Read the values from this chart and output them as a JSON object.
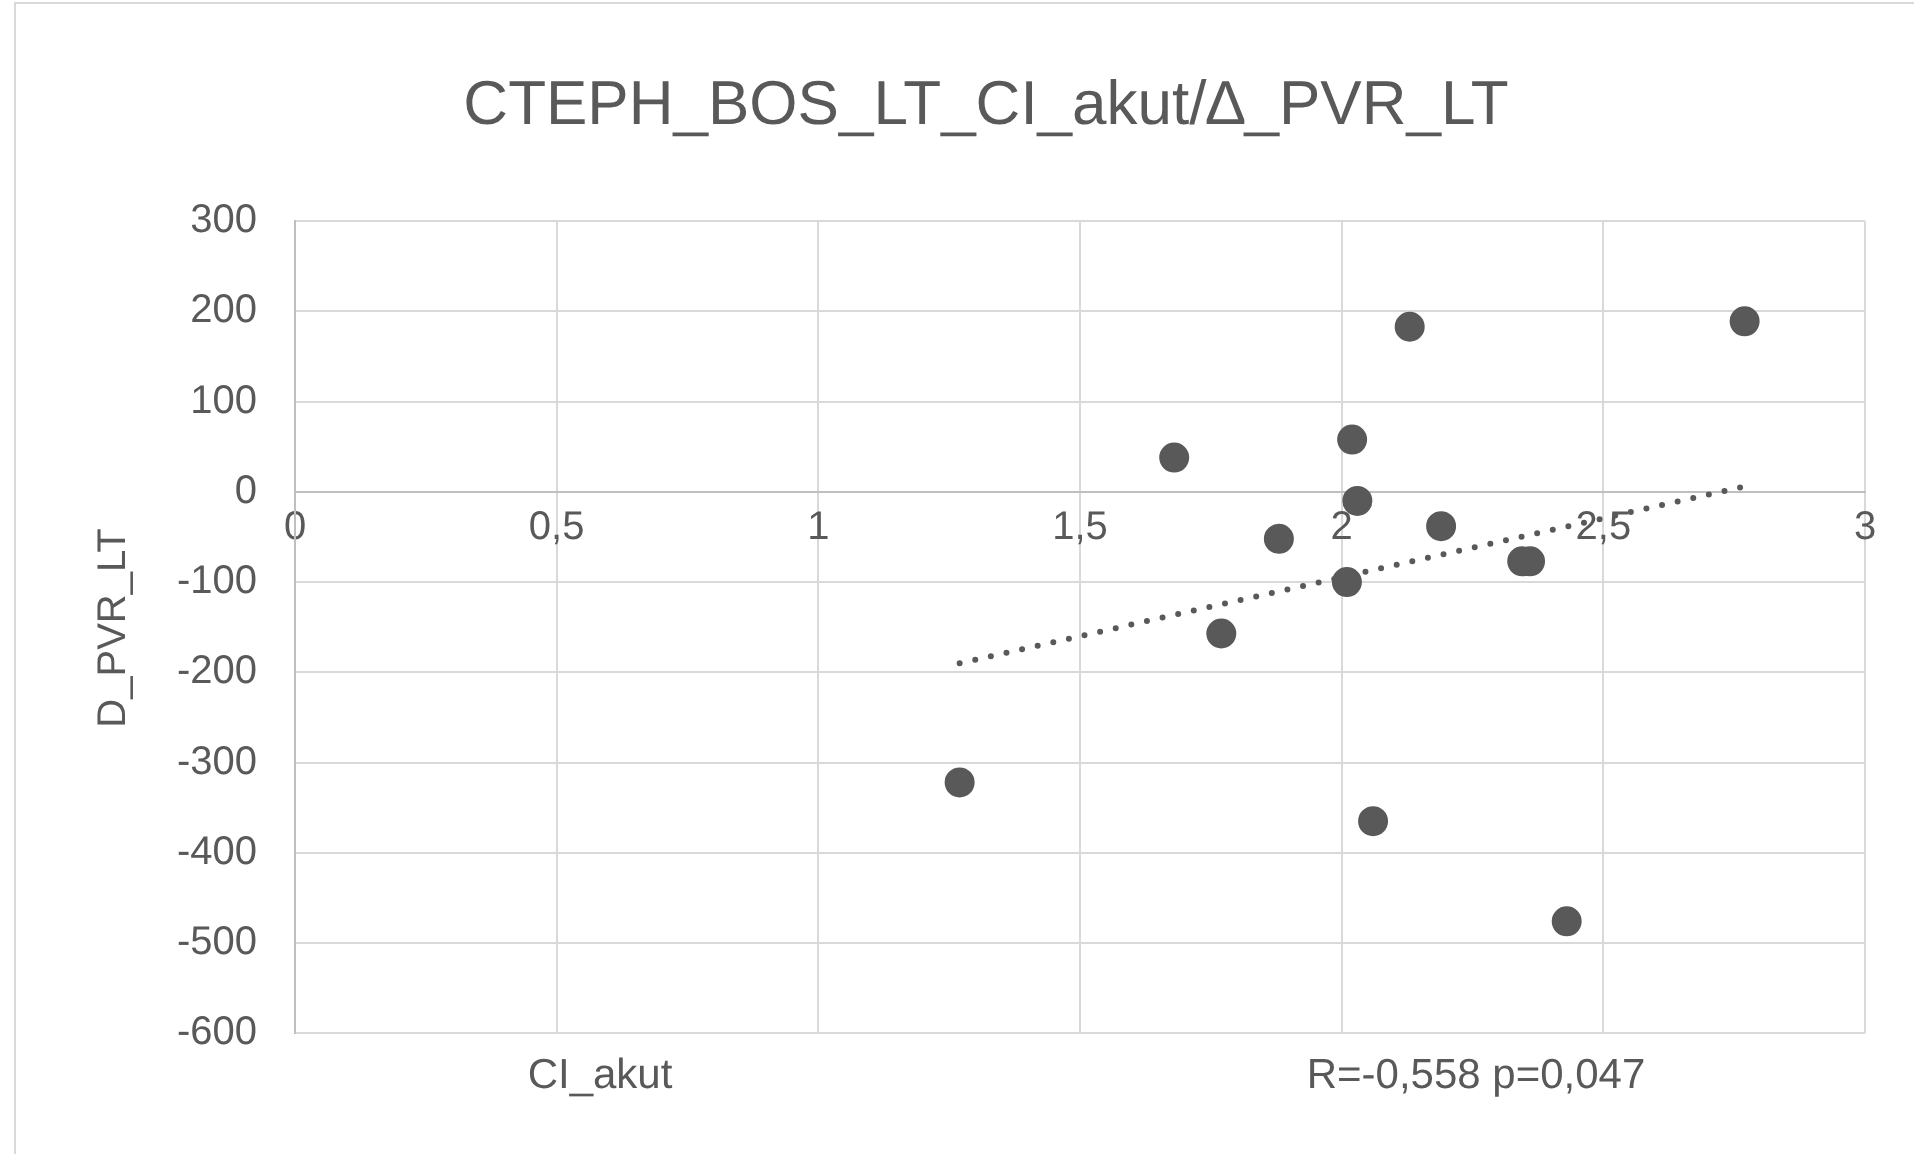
{
  "chart_data": {
    "type": "scatter",
    "title": "CTEPH_BOS_LT_CI_akut/∆_PVR_LT",
    "xlabel": "CI_akut",
    "ylabel": "D_PVR_LT",
    "annotations": [
      "R=-0,558 p=0,047"
    ],
    "xlim": [
      0,
      3
    ],
    "xticks": [
      0,
      {
        "value": 0.5,
        "label": "0,5"
      },
      1,
      {
        "value": 1.5,
        "label": "1,5"
      },
      2,
      {
        "value": 2.5,
        "label": "2,5"
      },
      3
    ],
    "ylim": [
      -600,
      300
    ],
    "yticks": [
      -600,
      -500,
      -400,
      -300,
      -200,
      -100,
      0,
      100,
      200,
      300
    ],
    "grid": true,
    "legend": false,
    "series": [
      {
        "type": "scatter",
        "color": "#595959",
        "marker": "circle",
        "x": [
          2.13,
          2.77,
          1.68,
          2.02,
          2.03,
          1.88,
          2.19,
          2.345,
          2.36,
          2.01,
          1.77,
          1.27,
          2.06,
          2.43
        ],
        "values": [
          183,
          189,
          38,
          58,
          -10,
          -52,
          -38,
          -77,
          -77,
          -100,
          -157,
          -322,
          -365,
          -476
        ]
      },
      {
        "type": "line",
        "color": "#595959",
        "marker": "none",
        "line_style": "dotted",
        "x": [
          1.27,
          2.77
        ],
        "values": [
          -190,
          6
        ]
      }
    ]
  }
}
